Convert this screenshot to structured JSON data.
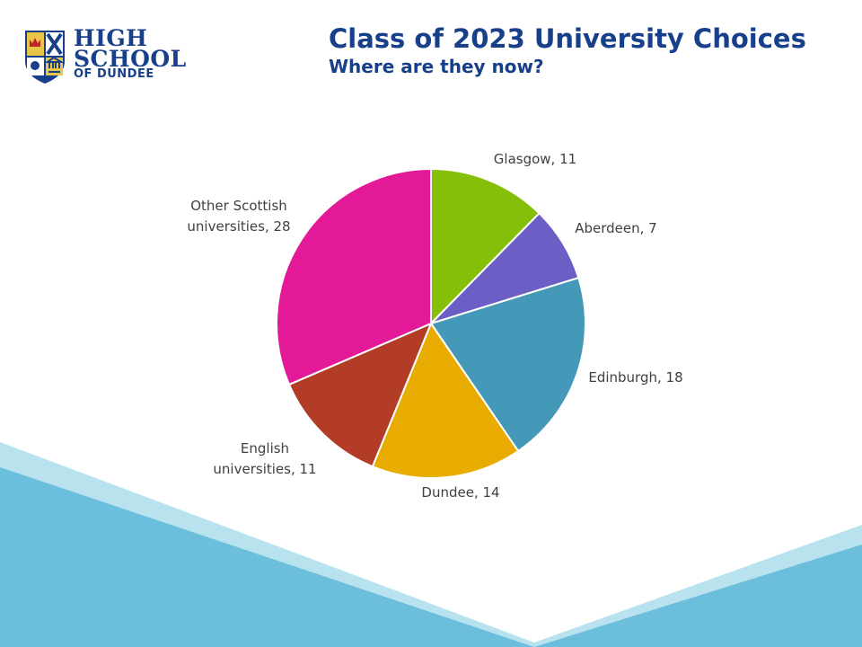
{
  "header": {
    "logo": {
      "line1": "HIGH",
      "line2": "SCHOOL",
      "line3": "OF DUNDEE"
    },
    "title": "Class of 2023 University Choices",
    "subtitle": "Where are they now?"
  },
  "colors": {
    "brand_navy": "#173f8a",
    "wave_dark": "#6bbedc",
    "wave_light": "#b9e2ef"
  },
  "chart_data": {
    "type": "pie",
    "start": "top, clockwise",
    "slices": [
      {
        "label": "Glasgow",
        "value": 11,
        "color": "#86bf0a",
        "text": "Glasgow, 11"
      },
      {
        "label": "Aberdeen",
        "value": 7,
        "color": "#6b5ec5",
        "text": "Aberdeen, 7"
      },
      {
        "label": "Edinburgh",
        "value": 18,
        "color": "#4599b8",
        "text": "Edinburgh, 18"
      },
      {
        "label": "Dundee",
        "value": 14,
        "color": "#e8ab00",
        "text": "Dundee, 14"
      },
      {
        "label": "English universities",
        "value": 11,
        "color": "#b33c26",
        "text": [
          "English",
          "universities, 11"
        ]
      },
      {
        "label": "Other Scottish universities",
        "value": 28,
        "color": "#e31997",
        "text": [
          "Other Scottish",
          "universities, 28"
        ]
      }
    ]
  }
}
